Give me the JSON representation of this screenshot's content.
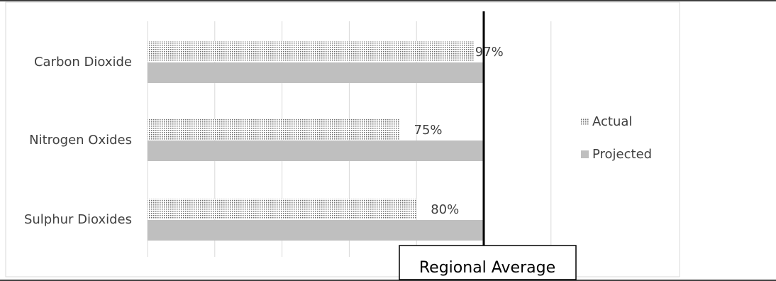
{
  "chart_data": {
    "type": "bar",
    "orientation": "horizontal",
    "categories": [
      "Carbon Dioxide",
      "Nitrogen Oxides",
      "Sulphur Dioxides"
    ],
    "series": [
      {
        "name": "Actual",
        "values": [
          97,
          75,
          80
        ],
        "pattern": "dotted"
      },
      {
        "name": "Projected",
        "values": [
          100,
          100,
          100
        ],
        "pattern": "solid"
      }
    ],
    "data_labels": [
      "97%",
      "75%",
      "80%"
    ],
    "xlim": [
      0,
      125
    ],
    "grid": true,
    "legend_position": "right",
    "reference_line": {
      "label": "Regional Average",
      "value": 100
    },
    "colors": {
      "projected": "#bfbfbf",
      "actual_dots": "#6e6e6e",
      "reference": "#000000",
      "grid": "#d9d9d9",
      "text": "#404040"
    }
  }
}
